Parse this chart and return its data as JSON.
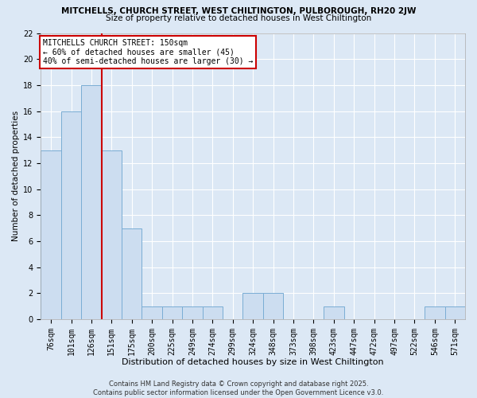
{
  "title1": "MITCHELLS, CHURCH STREET, WEST CHILTINGTON, PULBOROUGH, RH20 2JW",
  "title2": "Size of property relative to detached houses in West Chiltington",
  "xlabel": "Distribution of detached houses by size in West Chiltington",
  "ylabel": "Number of detached properties",
  "categories": [
    "76sqm",
    "101sqm",
    "126sqm",
    "151sqm",
    "175sqm",
    "200sqm",
    "225sqm",
    "249sqm",
    "274sqm",
    "299sqm",
    "324sqm",
    "348sqm",
    "373sqm",
    "398sqm",
    "423sqm",
    "447sqm",
    "472sqm",
    "497sqm",
    "522sqm",
    "546sqm",
    "571sqm"
  ],
  "values": [
    13,
    16,
    18,
    13,
    7,
    1,
    1,
    1,
    1,
    0,
    2,
    2,
    0,
    0,
    1,
    0,
    0,
    0,
    0,
    1,
    1
  ],
  "bar_color": "#ccddf0",
  "bar_edge_color": "#7aadd4",
  "property_line_x": 3,
  "property_line_color": "#cc0000",
  "annotation_text": "MITCHELLS CHURCH STREET: 150sqm\n← 60% of detached houses are smaller (45)\n40% of semi-detached houses are larger (30) →",
  "annotation_box_color": "#cc0000",
  "annotation_text_color": "#000000",
  "ylim": [
    0,
    22
  ],
  "yticks": [
    0,
    2,
    4,
    6,
    8,
    10,
    12,
    14,
    16,
    18,
    20,
    22
  ],
  "background_color": "#dce8f5",
  "plot_bg_color": "#dce8f5",
  "grid_color": "#ffffff",
  "footer": "Contains HM Land Registry data © Crown copyright and database right 2025.\nContains public sector information licensed under the Open Government Licence v3.0.",
  "title1_fontsize": 7.5,
  "title2_fontsize": 7.5,
  "xlabel_fontsize": 8,
  "ylabel_fontsize": 7.5,
  "tick_fontsize": 7,
  "annotation_fontsize": 7,
  "footer_fontsize": 6
}
